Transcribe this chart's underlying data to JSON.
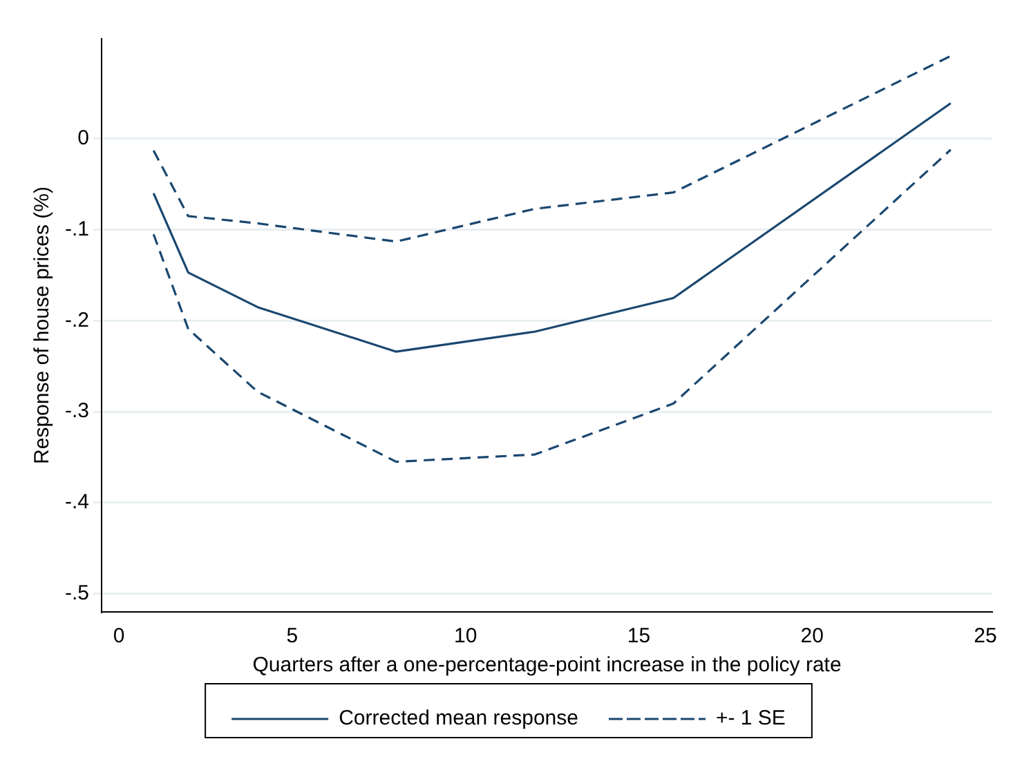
{
  "chart_data": {
    "type": "line",
    "xlabel": "Quarters after a one-percentage-point increase in the policy rate",
    "ylabel": "Response of house prices (%)",
    "x": [
      1,
      2,
      4,
      8,
      12,
      16,
      24
    ],
    "series": [
      {
        "name": "Corrected mean response",
        "color": "#1a476f",
        "line_style": "solid",
        "values": [
          -0.06,
          -0.147,
          -0.185,
          -0.234,
          -0.212,
          -0.175,
          0.039
        ]
      },
      {
        "name": "+- 1 SE",
        "color": "#1a476f",
        "line_style": "dashed",
        "values": [
          -0.013,
          -0.085,
          -0.093,
          -0.113,
          -0.077,
          -0.059,
          0.091
        ]
      },
      {
        "color": "#1a476f",
        "line_style": "dashed",
        "values": [
          -0.105,
          -0.209,
          -0.278,
          -0.355,
          -0.347,
          -0.291,
          -0.012
        ]
      }
    ],
    "xlim": [
      -0.5,
      25.2
    ],
    "ylim": [
      -0.52,
      0.11
    ],
    "xticks": [
      0,
      5,
      10,
      15,
      20,
      25
    ],
    "yticks": [
      {
        "value": 0,
        "label": "0"
      },
      {
        "value": -0.1,
        "label": "-.1"
      },
      {
        "value": -0.2,
        "label": "-.2"
      },
      {
        "value": -0.3,
        "label": "-.3"
      },
      {
        "value": -0.4,
        "label": "-.4"
      },
      {
        "value": -0.5,
        "label": "-.5"
      }
    ],
    "grid": "y",
    "legend": "bottom",
    "marker": "none"
  }
}
